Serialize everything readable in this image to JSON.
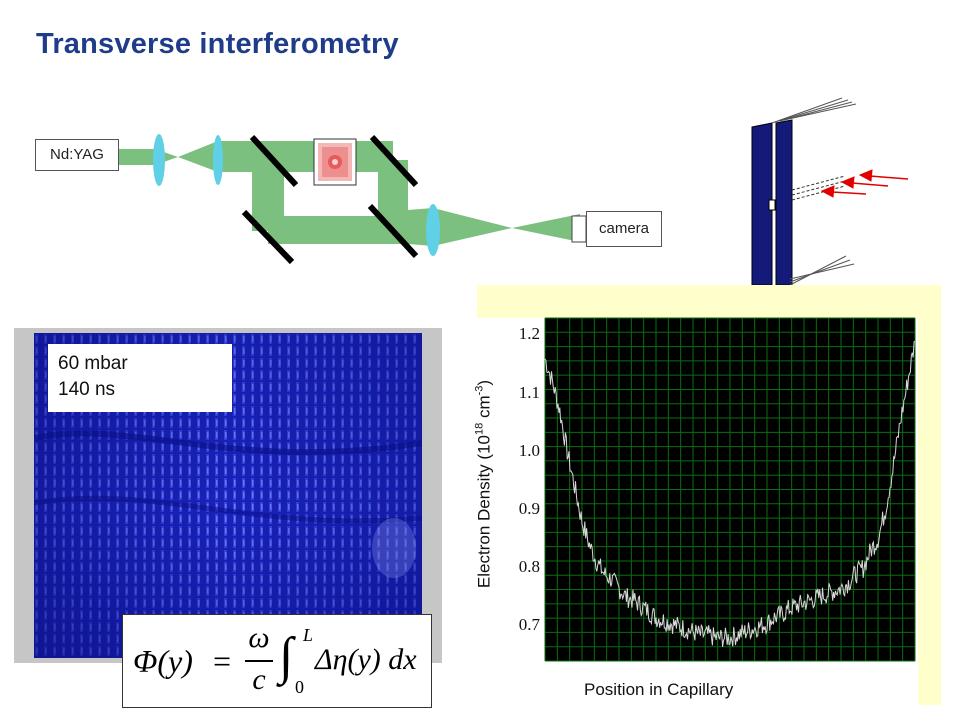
{
  "title": "Transverse interferometry",
  "setup": {
    "laser_label": "Nd:YAG",
    "camera_label": "camera"
  },
  "interferogram": {
    "pressure": "60 mbar",
    "time": "140 ns"
  },
  "formula": {
    "lhs": "Φ(y)",
    "numerator": "ω",
    "denominator": "c",
    "upper_limit": "L",
    "lower_limit": "0",
    "integrand": "Δη(y) dx"
  },
  "colors": {
    "title": "#1f3c8a",
    "beam": "#7cc07f",
    "lens": "#5fd0e6",
    "capillary": "#141a7a",
    "plot_bg": "#000000",
    "grid": "#0b6e12",
    "trace": "#d8d8d8",
    "highlight": "#ffffcc"
  },
  "chart_data": {
    "type": "line",
    "title": "",
    "xlabel": "Position in Capillary",
    "ylabel_main": "Electron Density (10",
    "ylabel_exp1": "18",
    "ylabel_mid": " cm",
    "ylabel_exp2": "-3",
    "ylabel_end": ")",
    "ylim": [
      0.64,
      1.23
    ],
    "yticks": [
      "1.2",
      "1.1",
      "1.0",
      "0.9",
      "0.8",
      "0.7"
    ],
    "ytick_values": [
      1.2,
      1.1,
      1.0,
      0.9,
      0.8,
      0.7
    ],
    "grid": true,
    "series": [
      {
        "x": [
          0,
          0.02,
          0.04,
          0.06,
          0.08,
          0.1,
          0.12,
          0.14,
          0.16,
          0.18,
          0.2,
          0.22,
          0.24,
          0.26,
          0.28,
          0.3,
          0.32,
          0.34,
          0.36,
          0.38,
          0.4,
          0.42,
          0.44,
          0.46,
          0.48,
          0.5,
          0.52,
          0.54,
          0.56,
          0.58,
          0.6,
          0.62,
          0.64,
          0.66,
          0.68,
          0.7,
          0.72,
          0.74,
          0.76,
          0.78,
          0.8,
          0.82,
          0.84,
          0.86,
          0.88,
          0.9,
          0.92,
          0.94,
          0.96,
          0.98,
          1.0
        ],
        "values": [
          1.16,
          1.12,
          1.07,
          1.0,
          0.94,
          0.88,
          0.84,
          0.81,
          0.79,
          0.78,
          0.765,
          0.75,
          0.745,
          0.735,
          0.725,
          0.715,
          0.71,
          0.705,
          0.7,
          0.695,
          0.69,
          0.685,
          0.685,
          0.68,
          0.68,
          0.68,
          0.685,
          0.69,
          0.695,
          0.7,
          0.705,
          0.715,
          0.72,
          0.73,
          0.735,
          0.74,
          0.745,
          0.75,
          0.755,
          0.76,
          0.765,
          0.775,
          0.79,
          0.8,
          0.83,
          0.85,
          0.9,
          0.97,
          1.05,
          1.12,
          1.19
        ]
      }
    ]
  }
}
